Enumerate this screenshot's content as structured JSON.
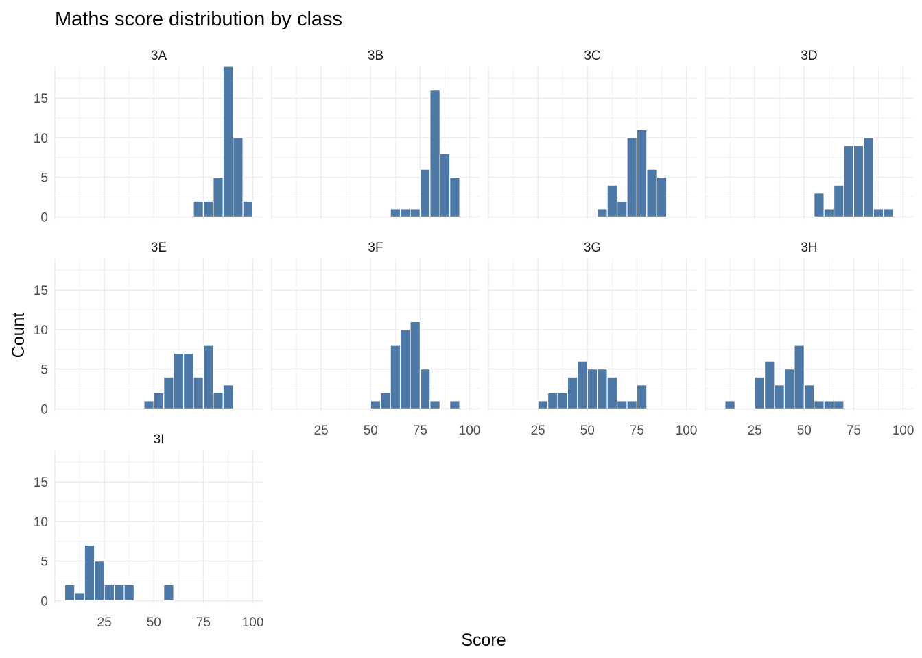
{
  "chart_data": {
    "type": "bar",
    "title": "Maths score distribution by class",
    "xlabel": "Score",
    "ylabel": "Count",
    "xlim": [
      0,
      105
    ],
    "ylim": [
      0,
      19
    ],
    "bin_width": 5,
    "bar_color": "#4e79a7",
    "grid": true,
    "x_ticks": [
      "25",
      "50",
      "75",
      "100"
    ],
    "y_ticks": [
      "0",
      "5",
      "10",
      "15"
    ],
    "panels": [
      {
        "name": "3A",
        "bin_starts": [
          70,
          75,
          80,
          85,
          90,
          95
        ],
        "counts": [
          2,
          2,
          5,
          19,
          10,
          2
        ]
      },
      {
        "name": "3B",
        "bin_starts": [
          60,
          65,
          70,
          75,
          80,
          85,
          90
        ],
        "counts": [
          1,
          1,
          1,
          6,
          16,
          8,
          5
        ]
      },
      {
        "name": "3C",
        "bin_starts": [
          55,
          60,
          65,
          70,
          75,
          80,
          85
        ],
        "counts": [
          1,
          4,
          2,
          10,
          11,
          6,
          5
        ]
      },
      {
        "name": "3D",
        "bin_starts": [
          55,
          60,
          65,
          70,
          75,
          80,
          85,
          90
        ],
        "counts": [
          3,
          1,
          4,
          9,
          9,
          10,
          1,
          1
        ]
      },
      {
        "name": "3E",
        "bin_starts": [
          45,
          50,
          55,
          60,
          65,
          70,
          75,
          80,
          85
        ],
        "counts": [
          1,
          2,
          4,
          7,
          7,
          4,
          8,
          2,
          3
        ]
      },
      {
        "name": "3F",
        "bin_starts": [
          50,
          55,
          60,
          65,
          70,
          75,
          80,
          90
        ],
        "counts": [
          1,
          2,
          8,
          10,
          11,
          5,
          1,
          1
        ]
      },
      {
        "name": "3G",
        "bin_starts": [
          25,
          30,
          35,
          40,
          45,
          50,
          55,
          60,
          65,
          70,
          75
        ],
        "counts": [
          1,
          2,
          2,
          4,
          6,
          5,
          5,
          4,
          1,
          1,
          3
        ]
      },
      {
        "name": "3H",
        "bin_starts": [
          10,
          25,
          30,
          35,
          40,
          45,
          50,
          55,
          60,
          65
        ],
        "counts": [
          1,
          4,
          6,
          3,
          5,
          8,
          3,
          1,
          1,
          1
        ]
      },
      {
        "name": "3I",
        "bin_starts": [
          5,
          10,
          15,
          20,
          25,
          30,
          35,
          55
        ],
        "counts": [
          2,
          1,
          7,
          5,
          2,
          2,
          2,
          2
        ]
      }
    ]
  }
}
